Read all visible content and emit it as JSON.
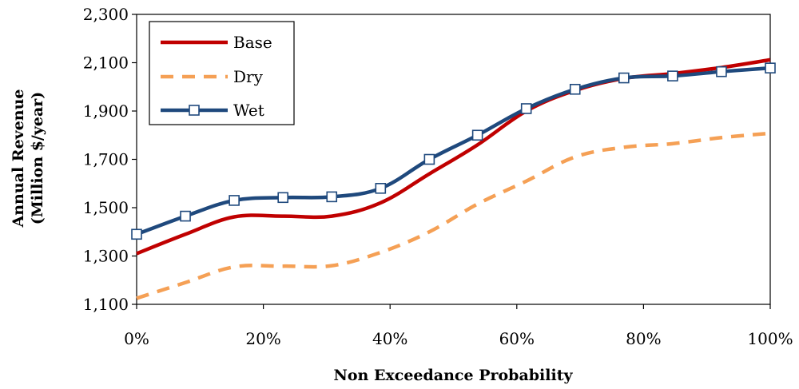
{
  "chart_data": {
    "type": "line",
    "title": "",
    "xlabel": "Non Exceedance Probability",
    "ylabel_lines": [
      "Annual Revenue",
      "(Million $/year)"
    ],
    "x": [
      0,
      0.077,
      0.154,
      0.231,
      0.308,
      0.385,
      0.462,
      0.538,
      0.615,
      0.692,
      0.769,
      0.846,
      0.923,
      1.0
    ],
    "xlim": [
      0,
      1
    ],
    "ylim": [
      1100,
      2300
    ],
    "x_ticks": [
      0,
      0.2,
      0.4,
      0.6,
      0.8,
      1.0
    ],
    "x_tick_labels": [
      "0%",
      "20%",
      "40%",
      "60%",
      "80%",
      "100%"
    ],
    "y_ticks": [
      1100,
      1300,
      1500,
      1700,
      1900,
      2100,
      2300
    ],
    "y_tick_labels": [
      "1,100",
      "1,300",
      "1,500",
      "1,700",
      "1,900",
      "2,100",
      "2,300"
    ],
    "legend_position": "top-left",
    "series": [
      {
        "name": "Base",
        "color": "#c00000",
        "style": "solid",
        "marker": "none",
        "values": [
          1310,
          1390,
          1462,
          1465,
          1465,
          1520,
          1640,
          1760,
          1900,
          1985,
          2035,
          2055,
          2080,
          2112
        ]
      },
      {
        "name": "Dry",
        "color": "#f5a055",
        "style": "dashed",
        "marker": "none",
        "values": [
          1125,
          1190,
          1255,
          1258,
          1260,
          1315,
          1400,
          1515,
          1610,
          1710,
          1750,
          1765,
          1790,
          1808
        ]
      },
      {
        "name": "Wet",
        "color": "#1f497d",
        "style": "solid",
        "marker": "square",
        "values": [
          1390,
          1465,
          1530,
          1542,
          1545,
          1580,
          1700,
          1800,
          1910,
          1990,
          2037,
          2045,
          2063,
          2078
        ]
      }
    ]
  }
}
